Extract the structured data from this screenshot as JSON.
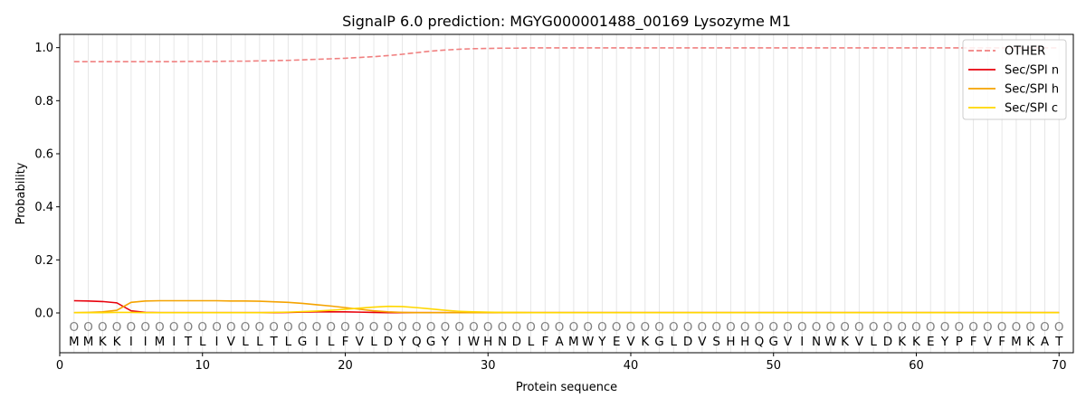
{
  "chart_data": {
    "type": "line",
    "title": "SignalP 6.0 prediction: MGYG000001488_00169 Lysozyme M1",
    "xlabel": "Protein sequence",
    "ylabel": "Probability",
    "xlim": [
      0,
      71
    ],
    "ylim": [
      -0.15,
      1.05
    ],
    "xticks": [
      0,
      10,
      20,
      30,
      40,
      50,
      60,
      70
    ],
    "yticks": [
      0.0,
      0.2,
      0.4,
      0.6,
      0.8,
      1.0
    ],
    "xtick_labels": [
      "0",
      "10",
      "20",
      "30",
      "40",
      "50",
      "60",
      "70"
    ],
    "ytick_labels": [
      "0.0",
      "0.2",
      "0.4",
      "0.6",
      "0.8",
      "1.0"
    ],
    "grid": "vertical at each residue",
    "legend_position": "top-right",
    "sequence": [
      "M",
      "M",
      "K",
      "K",
      "I",
      "I",
      "M",
      "I",
      "T",
      "L",
      "I",
      "V",
      "L",
      "L",
      "T",
      "L",
      "G",
      "I",
      "L",
      "F",
      "V",
      "L",
      "D",
      "Y",
      "Q",
      "G",
      "Y",
      "I",
      "W",
      "H",
      "N",
      "D",
      "L",
      "F",
      "A",
      "M",
      "W",
      "Y",
      "E",
      "V",
      "K",
      "G",
      "L",
      "D",
      "V",
      "S",
      "H",
      "H",
      "Q",
      "G",
      "V",
      "I",
      "N",
      "W",
      "K",
      "V",
      "L",
      "D",
      "K",
      "K",
      "E",
      "Y",
      "P",
      "F",
      "V",
      "F",
      "M",
      "K",
      "A",
      "T"
    ],
    "predicted_label": "O",
    "series": [
      {
        "name": "OTHER",
        "color": "#f08080",
        "style": "dashed",
        "values": [
          0.947,
          0.947,
          0.947,
          0.947,
          0.947,
          0.947,
          0.947,
          0.947,
          0.948,
          0.948,
          0.948,
          0.949,
          0.949,
          0.95,
          0.951,
          0.952,
          0.954,
          0.956,
          0.958,
          0.96,
          0.963,
          0.966,
          0.97,
          0.975,
          0.981,
          0.987,
          0.991,
          0.994,
          0.996,
          0.997,
          0.998,
          0.998,
          0.999,
          0.999,
          0.999,
          0.999,
          0.999,
          0.999,
          0.999,
          0.999,
          0.999,
          0.999,
          0.999,
          0.999,
          0.999,
          0.999,
          0.999,
          0.999,
          0.999,
          0.999,
          0.999,
          0.999,
          0.999,
          0.999,
          0.999,
          0.999,
          0.999,
          0.999,
          0.999,
          0.999,
          0.999,
          0.999,
          0.999,
          0.999,
          0.999,
          0.999,
          0.999,
          0.999,
          0.999,
          0.999
        ]
      },
      {
        "name": "Sec/SPI n",
        "color": "#e8000b",
        "style": "solid",
        "values": [
          0.046,
          0.045,
          0.043,
          0.038,
          0.008,
          0.002,
          0.001,
          0.001,
          0.001,
          0.001,
          0.001,
          0.001,
          0.001,
          0.001,
          0.001,
          0.002,
          0.003,
          0.004,
          0.004,
          0.004,
          0.003,
          0.002,
          0.001,
          0.001,
          0.001,
          0.001,
          0.001,
          0.001,
          0.001,
          0.001,
          0.001,
          0.001,
          0.001,
          0.001,
          0.001,
          0.001,
          0.001,
          0.001,
          0.001,
          0.001,
          0.001,
          0.001,
          0.001,
          0.001,
          0.001,
          0.001,
          0.001,
          0.001,
          0.001,
          0.001,
          0.001,
          0.001,
          0.001,
          0.001,
          0.001,
          0.001,
          0.001,
          0.001,
          0.001,
          0.001,
          0.001,
          0.001,
          0.001,
          0.001,
          0.001,
          0.001,
          0.001,
          0.001,
          0.001,
          0.001
        ]
      },
      {
        "name": "Sec/SPI h",
        "color": "#f5a300",
        "style": "solid",
        "values": [
          0.001,
          0.002,
          0.004,
          0.01,
          0.04,
          0.045,
          0.046,
          0.046,
          0.046,
          0.046,
          0.046,
          0.045,
          0.045,
          0.044,
          0.042,
          0.04,
          0.036,
          0.031,
          0.026,
          0.02,
          0.014,
          0.008,
          0.004,
          0.002,
          0.001,
          0.001,
          0.001,
          0.001,
          0.001,
          0.001,
          0.001,
          0.001,
          0.001,
          0.001,
          0.001,
          0.001,
          0.001,
          0.001,
          0.001,
          0.001,
          0.001,
          0.001,
          0.001,
          0.001,
          0.001,
          0.001,
          0.001,
          0.001,
          0.001,
          0.001,
          0.001,
          0.001,
          0.001,
          0.001,
          0.001,
          0.001,
          0.001,
          0.001,
          0.001,
          0.001,
          0.001,
          0.001,
          0.001,
          0.001,
          0.001,
          0.001,
          0.001,
          0.001,
          0.001,
          0.001
        ]
      },
      {
        "name": "Sec/SPI c",
        "color": "#ffd700",
        "style": "solid",
        "values": [
          0.001,
          0.001,
          0.001,
          0.002,
          0.002,
          0.001,
          0.001,
          0.001,
          0.001,
          0.001,
          0.001,
          0.001,
          0.001,
          0.001,
          0.002,
          0.003,
          0.005,
          0.007,
          0.01,
          0.014,
          0.018,
          0.022,
          0.025,
          0.024,
          0.02,
          0.015,
          0.01,
          0.006,
          0.004,
          0.003,
          0.002,
          0.002,
          0.001,
          0.001,
          0.001,
          0.001,
          0.001,
          0.001,
          0.001,
          0.001,
          0.001,
          0.001,
          0.001,
          0.001,
          0.001,
          0.001,
          0.001,
          0.001,
          0.001,
          0.001,
          0.001,
          0.001,
          0.001,
          0.001,
          0.001,
          0.001,
          0.001,
          0.001,
          0.001,
          0.001,
          0.001,
          0.001,
          0.001,
          0.001,
          0.001,
          0.001,
          0.001,
          0.001,
          0.001,
          0.001
        ]
      }
    ]
  }
}
